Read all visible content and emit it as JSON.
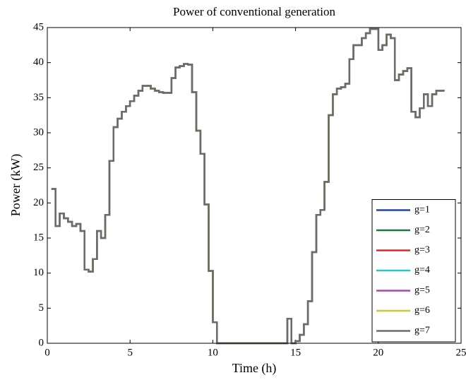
{
  "chart_data": {
    "type": "line",
    "step": true,
    "title": "Power of conventional generation",
    "x_label": "Time (h)",
    "y_label": "Power (kW)",
    "x": [
      0.25,
      0.5,
      0.75,
      1,
      1.25,
      1.5,
      1.75,
      2,
      2.25,
      2.5,
      2.75,
      3,
      3.25,
      3.5,
      3.75,
      4,
      4.25,
      4.5,
      4.75,
      5,
      5.25,
      5.5,
      5.75,
      6,
      6.25,
      6.5,
      6.75,
      7,
      7.25,
      7.5,
      7.75,
      8,
      8.25,
      8.5,
      8.75,
      9,
      9.25,
      9.5,
      9.75,
      10,
      10.25,
      10.5,
      10.75,
      11,
      11.25,
      11.5,
      11.75,
      12,
      12.25,
      12.5,
      12.75,
      13,
      13.25,
      13.5,
      13.75,
      14,
      14.25,
      14.5,
      14.75,
      15,
      15.25,
      15.5,
      15.75,
      16,
      16.25,
      16.5,
      16.75,
      17,
      17.25,
      17.5,
      17.75,
      18,
      18.25,
      18.5,
      18.75,
      19,
      19.25,
      19.5,
      19.75,
      20,
      20.25,
      20.5,
      20.75,
      21,
      21.25,
      21.5,
      21.75,
      22,
      22.25,
      22.5,
      22.75,
      23,
      23.25,
      23.5,
      23.75,
      24
    ],
    "series": [
      {
        "name": "g=1",
        "color": "#2b3ea8",
        "values": [
          22,
          16.7,
          18.5,
          17.8,
          17.3,
          16.7,
          17,
          16,
          10.5,
          10.2,
          12,
          16,
          15,
          18.3,
          26,
          30.8,
          32,
          33,
          33.8,
          34.5,
          35.3,
          36,
          36.7,
          36.7,
          36.3,
          36,
          35.8,
          35.7,
          35.7,
          37.8,
          39.3,
          39.5,
          39.8,
          39.7,
          35.8,
          30.3,
          27,
          19.8,
          10.3,
          3,
          0,
          0,
          0,
          0,
          0,
          0,
          0,
          0,
          0,
          0,
          0,
          0,
          0,
          0,
          0,
          0,
          0,
          3.5,
          0,
          0.3,
          1.2,
          2.7,
          6,
          13,
          18.3,
          19,
          23,
          32.5,
          35.5,
          36.3,
          36.5,
          37,
          40.5,
          42.5,
          42.5,
          43.5,
          44.2,
          44.8,
          44.8,
          41.8,
          42.5,
          44,
          43.5,
          37.5,
          38.3,
          38.8,
          39.2,
          33,
          32.2,
          33.5,
          35.5,
          33.8,
          35.5,
          36,
          36,
          36
        ]
      },
      {
        "name": "g=2",
        "color": "#1a7a3a",
        "values": [
          22,
          16.7,
          18.5,
          17.8,
          17.3,
          16.7,
          17,
          16,
          10.5,
          10.2,
          12,
          16,
          15,
          18.3,
          26,
          30.8,
          32,
          33,
          33.8,
          34.5,
          35.3,
          36,
          36.7,
          36.7,
          36.3,
          36,
          35.8,
          35.7,
          35.7,
          37.8,
          39.3,
          39.5,
          39.8,
          39.7,
          35.8,
          30.3,
          27,
          19.8,
          10.3,
          3,
          0,
          0,
          0,
          0,
          0,
          0,
          0,
          0,
          0,
          0,
          0,
          0,
          0,
          0,
          0,
          0,
          0,
          3.5,
          0,
          0.3,
          1.2,
          2.7,
          6,
          13,
          18.3,
          19,
          23,
          32.5,
          35.5,
          36.3,
          36.5,
          37,
          40.5,
          42.5,
          42.5,
          43.5,
          44.2,
          44.8,
          44.8,
          41.8,
          42.5,
          44,
          43.5,
          37.5,
          38.3,
          38.8,
          39.2,
          33,
          32.2,
          33.5,
          35.5,
          33.8,
          35.5,
          36,
          36,
          36
        ]
      },
      {
        "name": "g=3",
        "color": "#e8231f",
        "values": [
          22,
          16.7,
          18.5,
          17.8,
          17.3,
          16.7,
          17,
          16,
          10.5,
          10.2,
          12,
          16,
          15,
          18.3,
          26,
          30.8,
          32,
          33,
          33.8,
          34.5,
          35.3,
          36,
          36.7,
          36.7,
          36.3,
          36,
          35.8,
          35.7,
          35.7,
          37.8,
          39.3,
          39.5,
          39.8,
          39.7,
          35.8,
          30.3,
          27,
          19.8,
          10.3,
          3,
          0,
          0,
          0,
          0,
          0,
          0,
          0,
          0,
          0,
          0,
          0,
          0,
          0,
          0,
          0,
          0,
          0,
          3.5,
          0,
          0.3,
          1.2,
          2.7,
          6,
          13,
          18.3,
          19,
          23,
          32.5,
          35.5,
          36.3,
          36.5,
          37,
          40.5,
          42.5,
          42.5,
          43.5,
          44.2,
          44.8,
          44.8,
          41.8,
          42.5,
          44,
          43.5,
          37.5,
          38.3,
          38.8,
          39.2,
          33,
          32.2,
          33.5,
          35.5,
          33.8,
          35.5,
          36,
          36,
          36
        ]
      },
      {
        "name": "g=4",
        "color": "#2ec4c4",
        "values": [
          22,
          16.7,
          18.5,
          17.8,
          17.3,
          16.7,
          17,
          16,
          10.5,
          10.2,
          12,
          16,
          15,
          18.3,
          26,
          30.8,
          32,
          33,
          33.8,
          34.5,
          35.3,
          36,
          36.7,
          36.7,
          36.3,
          36,
          35.8,
          35.7,
          35.7,
          37.8,
          39.3,
          39.5,
          39.8,
          39.7,
          35.8,
          30.3,
          27,
          19.8,
          10.3,
          3,
          0,
          0,
          0,
          0,
          0,
          0,
          0,
          0,
          0,
          0,
          0,
          0,
          0,
          0,
          0,
          0,
          0,
          3.5,
          0,
          0.3,
          1.2,
          2.7,
          6,
          13,
          18.3,
          19,
          23,
          32.5,
          35.5,
          36.3,
          36.5,
          37,
          40.5,
          42.5,
          42.5,
          43.5,
          44.2,
          44.8,
          44.8,
          41.8,
          42.5,
          44,
          43.5,
          37.5,
          38.3,
          38.8,
          39.2,
          33,
          32.2,
          33.5,
          35.5,
          33.8,
          35.5,
          36,
          36,
          36
        ]
      },
      {
        "name": "g=5",
        "color": "#a64ca6",
        "values": [
          22,
          16.7,
          18.5,
          17.8,
          17.3,
          16.7,
          17,
          16,
          10.5,
          10.2,
          12,
          16,
          15,
          18.3,
          26,
          30.8,
          32,
          33,
          33.8,
          34.5,
          35.3,
          36,
          36.7,
          36.7,
          36.3,
          36,
          35.8,
          35.7,
          35.7,
          37.8,
          39.3,
          39.5,
          39.8,
          39.7,
          35.8,
          30.3,
          27,
          19.8,
          10.3,
          3,
          0,
          0,
          0,
          0,
          0,
          0,
          0,
          0,
          0,
          0,
          0,
          0,
          0,
          0,
          0,
          0,
          0,
          3.5,
          0,
          0.3,
          1.2,
          2.7,
          6,
          13,
          18.3,
          19,
          23,
          32.5,
          35.5,
          36.3,
          36.5,
          37,
          40.5,
          42.5,
          42.5,
          43.5,
          44.2,
          44.8,
          44.8,
          41.8,
          42.5,
          44,
          43.5,
          37.5,
          38.3,
          38.8,
          39.2,
          33,
          32.2,
          33.5,
          35.5,
          33.8,
          35.5,
          36,
          36,
          36
        ]
      },
      {
        "name": "g=6",
        "color": "#c8c83c",
        "values": [
          22,
          16.7,
          18.5,
          17.8,
          17.3,
          16.7,
          17,
          16,
          10.5,
          10.2,
          12,
          16,
          15,
          18.3,
          26,
          30.8,
          32,
          33,
          33.8,
          34.5,
          35.3,
          36,
          36.7,
          36.7,
          36.3,
          36,
          35.8,
          35.7,
          35.7,
          37.8,
          39.3,
          39.5,
          39.8,
          39.7,
          35.8,
          30.3,
          27,
          19.8,
          10.3,
          3,
          0,
          0,
          0,
          0,
          0,
          0,
          0,
          0,
          0,
          0,
          0,
          0,
          0,
          0,
          0,
          0,
          0,
          3.5,
          0,
          0.3,
          1.2,
          2.7,
          6,
          13,
          18.3,
          19,
          23,
          32.5,
          35.5,
          36.3,
          36.5,
          37,
          40.5,
          42.5,
          42.5,
          43.5,
          44.2,
          44.8,
          44.8,
          41.8,
          42.5,
          44,
          43.5,
          37.5,
          38.3,
          38.8,
          39.2,
          33,
          32.2,
          33.5,
          35.5,
          33.8,
          35.5,
          36,
          36,
          36
        ]
      },
      {
        "name": "g=7",
        "color": "#6b6b6b",
        "values": [
          22,
          16.7,
          18.5,
          17.8,
          17.3,
          16.7,
          17,
          16,
          10.5,
          10.2,
          12,
          16,
          15,
          18.3,
          26,
          30.8,
          32,
          33,
          33.8,
          34.5,
          35.3,
          36,
          36.7,
          36.7,
          36.3,
          36,
          35.8,
          35.7,
          35.7,
          37.8,
          39.3,
          39.5,
          39.8,
          39.7,
          35.8,
          30.3,
          27,
          19.8,
          10.3,
          3,
          0,
          0,
          0,
          0,
          0,
          0,
          0,
          0,
          0,
          0,
          0,
          0,
          0,
          0,
          0,
          0,
          0,
          3.5,
          0,
          0.3,
          1.2,
          2.7,
          6,
          13,
          18.3,
          19,
          23,
          32.5,
          35.5,
          36.3,
          36.5,
          37,
          40.5,
          42.5,
          42.5,
          43.5,
          44.2,
          44.8,
          44.8,
          41.8,
          42.5,
          44,
          43.5,
          37.5,
          38.3,
          38.8,
          39.2,
          33,
          32.2,
          33.5,
          35.5,
          33.8,
          35.5,
          36,
          36,
          36
        ]
      }
    ],
    "xlim": [
      0,
      25
    ],
    "xticks": [
      0,
      5,
      10,
      15,
      20,
      25
    ],
    "ylim": [
      0,
      45
    ],
    "yticks": [
      0,
      5,
      10,
      15,
      20,
      25,
      30,
      35,
      40,
      45
    ],
    "legend": "lower-right"
  }
}
